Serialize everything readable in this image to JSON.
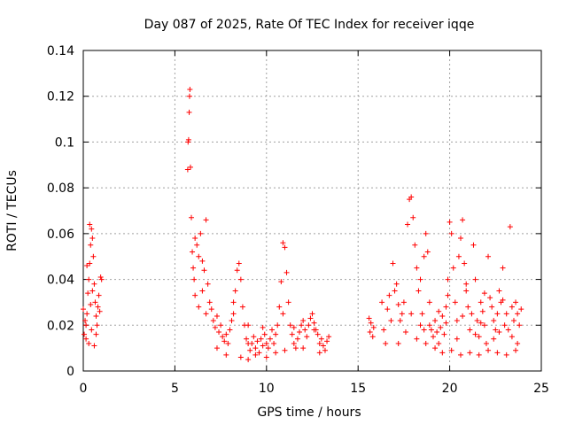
{
  "chart_data": {
    "type": "scatter",
    "title": "Day 087 of 2025, Rate Of TEC Index for receiver iqqe",
    "xlabel": "GPS time / hours",
    "ylabel": "ROTI / TECUs",
    "xlim": [
      0,
      25
    ],
    "ylim": [
      0,
      0.14
    ],
    "xticks": [
      "0",
      "5",
      "10",
      "15",
      "20",
      "25"
    ],
    "yticks": [
      "0",
      "0.02",
      "0.04",
      "0.06",
      "0.08",
      "0.1",
      "0.12",
      "0.14"
    ],
    "grid": true,
    "marker": "plus",
    "color": "#ff0000",
    "series": [
      {
        "points": [
          [
            0.0,
            0.027
          ],
          [
            0.05,
            0.016
          ],
          [
            0.1,
            0.022
          ],
          [
            0.15,
            0.014
          ],
          [
            0.2,
            0.025
          ],
          [
            0.25,
            0.034
          ],
          [
            0.3,
            0.04
          ],
          [
            0.35,
            0.047
          ],
          [
            0.4,
            0.055
          ],
          [
            0.45,
            0.062
          ],
          [
            0.5,
            0.058
          ],
          [
            0.55,
            0.05
          ],
          [
            0.6,
            0.038
          ],
          [
            0.65,
            0.03
          ],
          [
            0.7,
            0.024
          ],
          [
            0.75,
            0.02
          ],
          [
            0.8,
            0.028
          ],
          [
            0.85,
            0.033
          ],
          [
            0.9,
            0.026
          ],
          [
            0.95,
            0.041
          ],
          [
            1.0,
            0.04
          ],
          [
            0.3,
            0.012
          ],
          [
            0.45,
            0.018
          ],
          [
            0.6,
            0.011
          ],
          [
            0.2,
            0.046
          ],
          [
            0.4,
            0.029
          ],
          [
            0.5,
            0.035
          ],
          [
            0.7,
            0.016
          ],
          [
            0.15,
            0.02
          ],
          [
            0.35,
            0.064
          ],
          [
            5.7,
            0.088
          ],
          [
            5.72,
            0.1
          ],
          [
            5.75,
            0.101
          ],
          [
            5.78,
            0.113
          ],
          [
            5.8,
            0.12
          ],
          [
            5.82,
            0.123
          ],
          [
            5.85,
            0.089
          ],
          [
            5.9,
            0.067
          ],
          [
            5.95,
            0.052
          ],
          [
            6.0,
            0.045
          ],
          [
            6.05,
            0.04
          ],
          [
            6.1,
            0.058
          ],
          [
            6.2,
            0.055
          ],
          [
            6.3,
            0.05
          ],
          [
            6.4,
            0.06
          ],
          [
            6.5,
            0.048
          ],
          [
            6.6,
            0.044
          ],
          [
            6.7,
            0.066
          ],
          [
            6.8,
            0.038
          ],
          [
            6.9,
            0.03
          ],
          [
            7.0,
            0.027
          ],
          [
            7.1,
            0.022
          ],
          [
            7.2,
            0.019
          ],
          [
            7.3,
            0.024
          ],
          [
            7.4,
            0.017
          ],
          [
            7.5,
            0.02
          ],
          [
            7.6,
            0.015
          ],
          [
            7.7,
            0.013
          ],
          [
            7.8,
            0.016
          ],
          [
            7.9,
            0.012
          ],
          [
            8.0,
            0.018
          ],
          [
            8.1,
            0.022
          ],
          [
            8.2,
            0.03
          ],
          [
            8.3,
            0.035
          ],
          [
            8.4,
            0.044
          ],
          [
            8.5,
            0.047
          ],
          [
            8.6,
            0.04
          ],
          [
            8.7,
            0.028
          ],
          [
            8.8,
            0.02
          ],
          [
            8.9,
            0.014
          ],
          [
            9.0,
            0.012
          ],
          [
            9.1,
            0.009
          ],
          [
            9.2,
            0.012
          ],
          [
            9.3,
            0.015
          ],
          [
            9.4,
            0.01
          ],
          [
            9.5,
            0.013
          ],
          [
            9.6,
            0.008
          ],
          [
            9.7,
            0.014
          ],
          [
            9.8,
            0.011
          ],
          [
            9.9,
            0.016
          ],
          [
            10.0,
            0.012
          ],
          [
            10.1,
            0.01
          ],
          [
            10.2,
            0.014
          ],
          [
            10.3,
            0.018
          ],
          [
            10.4,
            0.012
          ],
          [
            10.5,
            0.016
          ],
          [
            10.6,
            0.02
          ],
          [
            10.7,
            0.028
          ],
          [
            10.8,
            0.039
          ],
          [
            10.9,
            0.056
          ],
          [
            11.0,
            0.054
          ],
          [
            11.1,
            0.043
          ],
          [
            11.2,
            0.03
          ],
          [
            11.3,
            0.02
          ],
          [
            11.4,
            0.016
          ],
          [
            11.5,
            0.012
          ],
          [
            11.6,
            0.01
          ],
          [
            11.7,
            0.014
          ],
          [
            11.8,
            0.017
          ],
          [
            11.9,
            0.02
          ],
          [
            12.0,
            0.022
          ],
          [
            12.1,
            0.018
          ],
          [
            12.2,
            0.015
          ],
          [
            12.3,
            0.02
          ],
          [
            12.4,
            0.023
          ],
          [
            12.5,
            0.025
          ],
          [
            12.6,
            0.021
          ],
          [
            12.7,
            0.018
          ],
          [
            12.8,
            0.016
          ],
          [
            12.9,
            0.012
          ],
          [
            13.0,
            0.014
          ],
          [
            13.1,
            0.011
          ],
          [
            13.2,
            0.009
          ],
          [
            13.3,
            0.013
          ],
          [
            13.4,
            0.015
          ],
          [
            6.1,
            0.033
          ],
          [
            6.3,
            0.028
          ],
          [
            6.5,
            0.035
          ],
          [
            6.7,
            0.025
          ],
          [
            7.3,
            0.01
          ],
          [
            7.8,
            0.007
          ],
          [
            8.6,
            0.006
          ],
          [
            9.0,
            0.005
          ],
          [
            9.4,
            0.007
          ],
          [
            10.0,
            0.006
          ],
          [
            10.5,
            0.008
          ],
          [
            11.0,
            0.009
          ],
          [
            12.0,
            0.01
          ],
          [
            12.9,
            0.008
          ],
          [
            8.2,
            0.025
          ],
          [
            9.0,
            0.02
          ],
          [
            9.8,
            0.019
          ],
          [
            10.9,
            0.025
          ],
          [
            11.5,
            0.019
          ],
          [
            12.6,
            0.018
          ],
          [
            15.6,
            0.023
          ],
          [
            15.65,
            0.017
          ],
          [
            15.7,
            0.021
          ],
          [
            15.8,
            0.015
          ],
          [
            15.85,
            0.019
          ],
          [
            16.3,
            0.03
          ],
          [
            16.4,
            0.018
          ],
          [
            16.5,
            0.012
          ],
          [
            16.6,
            0.027
          ],
          [
            16.7,
            0.033
          ],
          [
            16.9,
            0.047
          ],
          [
            17.0,
            0.035
          ],
          [
            17.1,
            0.038
          ],
          [
            17.2,
            0.029
          ],
          [
            17.4,
            0.025
          ],
          [
            17.5,
            0.03
          ],
          [
            17.7,
            0.064
          ],
          [
            17.8,
            0.075
          ],
          [
            17.9,
            0.076
          ],
          [
            18.0,
            0.067
          ],
          [
            18.1,
            0.055
          ],
          [
            18.2,
            0.045
          ],
          [
            18.3,
            0.035
          ],
          [
            18.4,
            0.02
          ],
          [
            18.5,
            0.025
          ],
          [
            18.6,
            0.05
          ],
          [
            18.7,
            0.06
          ],
          [
            18.8,
            0.052
          ],
          [
            18.9,
            0.02
          ],
          [
            19.0,
            0.018
          ],
          [
            19.1,
            0.015
          ],
          [
            19.2,
            0.022
          ],
          [
            19.3,
            0.017
          ],
          [
            19.4,
            0.012
          ],
          [
            19.5,
            0.019
          ],
          [
            19.6,
            0.024
          ],
          [
            19.7,
            0.016
          ],
          [
            19.8,
            0.028
          ],
          [
            19.9,
            0.04
          ],
          [
            20.0,
            0.065
          ],
          [
            20.1,
            0.06
          ],
          [
            20.2,
            0.045
          ],
          [
            20.3,
            0.03
          ],
          [
            20.4,
            0.022
          ],
          [
            20.5,
            0.05
          ],
          [
            20.6,
            0.058
          ],
          [
            20.7,
            0.066
          ],
          [
            20.8,
            0.047
          ],
          [
            20.9,
            0.035
          ],
          [
            21.0,
            0.028
          ],
          [
            21.1,
            0.018
          ],
          [
            21.2,
            0.025
          ],
          [
            21.3,
            0.055
          ],
          [
            21.4,
            0.04
          ],
          [
            21.5,
            0.022
          ],
          [
            21.6,
            0.015
          ],
          [
            21.7,
            0.03
          ],
          [
            21.8,
            0.026
          ],
          [
            21.9,
            0.02
          ],
          [
            22.0,
            0.012
          ],
          [
            22.1,
            0.05
          ],
          [
            22.2,
            0.032
          ],
          [
            22.3,
            0.028
          ],
          [
            22.4,
            0.022
          ],
          [
            22.5,
            0.018
          ],
          [
            22.6,
            0.025
          ],
          [
            22.7,
            0.035
          ],
          [
            22.8,
            0.03
          ],
          [
            22.9,
            0.045
          ],
          [
            23.0,
            0.02
          ],
          [
            23.1,
            0.025
          ],
          [
            23.2,
            0.018
          ],
          [
            23.3,
            0.063
          ],
          [
            23.4,
            0.028
          ],
          [
            23.5,
            0.022
          ],
          [
            23.6,
            0.03
          ],
          [
            23.7,
            0.025
          ],
          [
            23.8,
            0.02
          ],
          [
            23.9,
            0.027
          ],
          [
            17.3,
            0.022
          ],
          [
            17.6,
            0.017
          ],
          [
            18.2,
            0.014
          ],
          [
            18.7,
            0.012
          ],
          [
            19.2,
            0.01
          ],
          [
            19.6,
            0.008
          ],
          [
            20.1,
            0.009
          ],
          [
            20.6,
            0.007
          ],
          [
            21.1,
            0.008
          ],
          [
            21.6,
            0.007
          ],
          [
            22.1,
            0.009
          ],
          [
            22.6,
            0.008
          ],
          [
            23.1,
            0.007
          ],
          [
            23.6,
            0.009
          ],
          [
            17.9,
            0.025
          ],
          [
            18.9,
            0.03
          ],
          [
            19.9,
            0.033
          ],
          [
            20.9,
            0.038
          ],
          [
            21.9,
            0.034
          ],
          [
            22.9,
            0.031
          ],
          [
            18.4,
            0.04
          ],
          [
            19.4,
            0.026
          ],
          [
            20.4,
            0.014
          ],
          [
            21.4,
            0.016
          ],
          [
            22.4,
            0.014
          ],
          [
            23.4,
            0.015
          ],
          [
            16.8,
            0.022
          ],
          [
            17.2,
            0.012
          ],
          [
            18.6,
            0.018
          ],
          [
            19.8,
            0.021
          ],
          [
            20.7,
            0.024
          ],
          [
            21.7,
            0.021
          ],
          [
            22.7,
            0.017
          ],
          [
            23.7,
            0.012
          ]
        ]
      }
    ]
  }
}
